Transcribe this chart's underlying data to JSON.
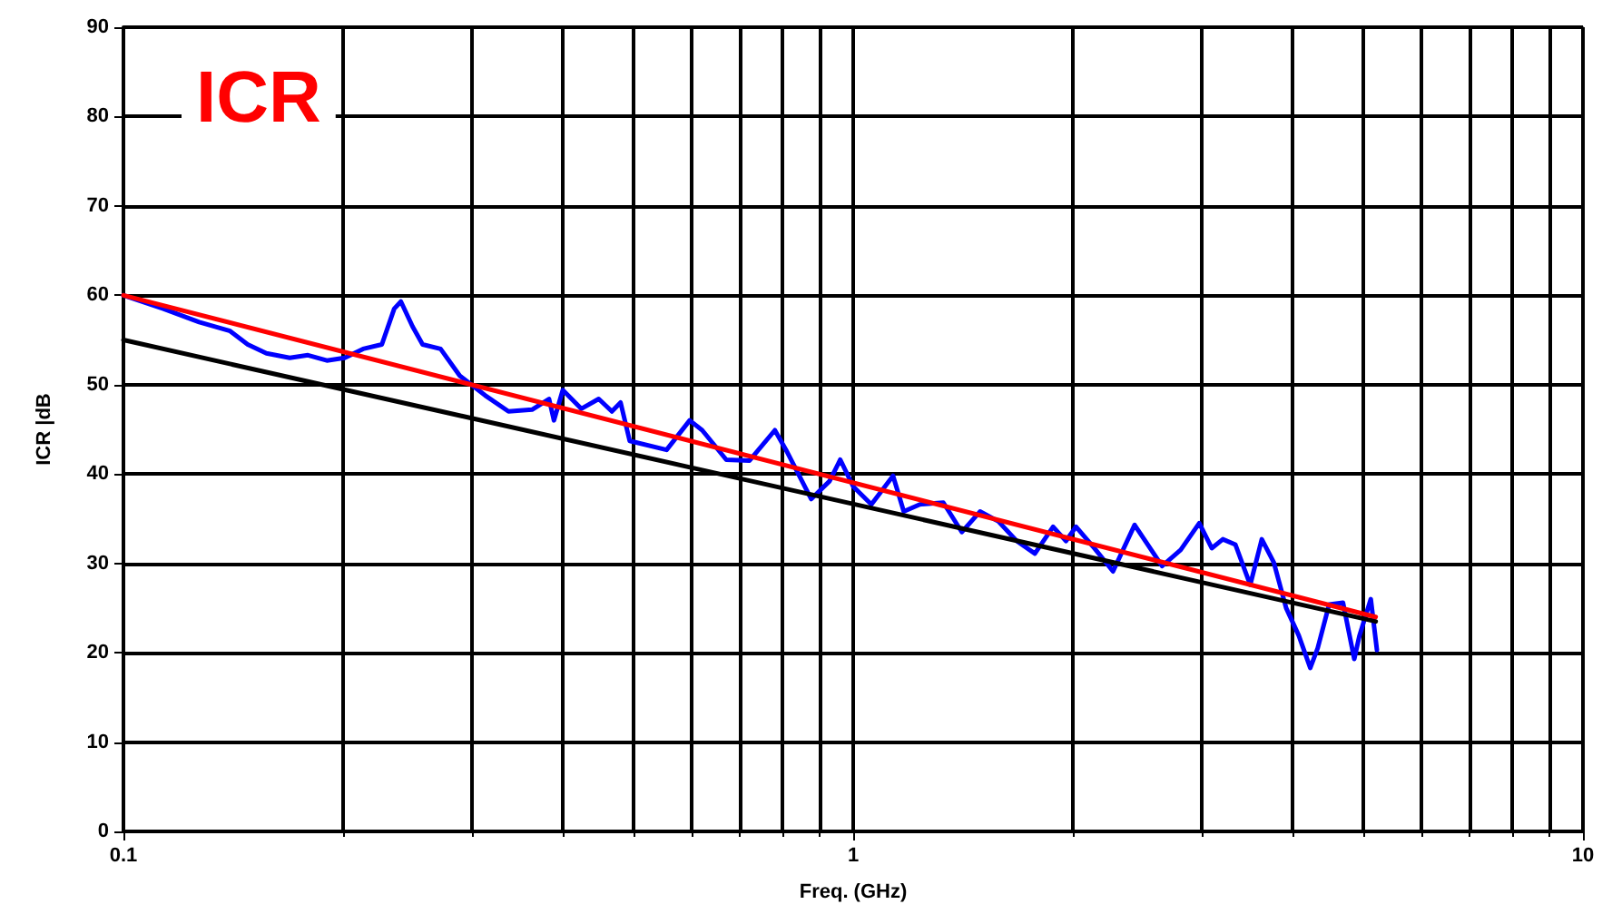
{
  "chart_data": {
    "type": "line",
    "title": "ICR",
    "xlabel": "Freq. (GHz)",
    "ylabel": "ICR |dB",
    "log": "x",
    "xlim": [
      0.1,
      10
    ],
    "xticks": [
      0.1,
      1,
      10
    ],
    "ylim": [
      0,
      90
    ],
    "yticks": [
      0,
      10,
      20,
      30,
      40,
      50,
      60,
      70,
      80,
      90
    ],
    "grid": true,
    "marker": "none",
    "line_style": "solid",
    "series": [
      {
        "color": "#0000ff",
        "x": [
          0.1,
          0.1134,
          0.127,
          0.14,
          0.148,
          0.157,
          0.169,
          0.179,
          0.19,
          0.201,
          0.213,
          0.226,
          0.235,
          0.24,
          0.249,
          0.257,
          0.272,
          0.289,
          0.313,
          0.337,
          0.363,
          0.383,
          0.389,
          0.4,
          0.424,
          0.448,
          0.467,
          0.48,
          0.494,
          0.555,
          0.597,
          0.621,
          0.67,
          0.721,
          0.781,
          0.809,
          0.876,
          0.928,
          0.96,
          1.0,
          1.059,
          1.134,
          1.173,
          1.234,
          1.329,
          1.409,
          1.492,
          1.581,
          1.675,
          1.774,
          1.879,
          1.957,
          2.02,
          2.14,
          2.27,
          2.43,
          2.65,
          2.81,
          2.98,
          3.1,
          3.21,
          3.34,
          3.5,
          3.63,
          3.77,
          3.92,
          4.08,
          4.23,
          4.33,
          4.49,
          4.69,
          4.86,
          4.94,
          5.12,
          5.22
        ],
        "values": [
          60,
          58.5,
          57,
          56,
          54.5,
          53.5,
          53,
          53.3,
          52.7,
          53,
          54,
          54.5,
          58.5,
          59.3,
          56.5,
          54.5,
          54,
          51,
          48.8,
          47,
          47.2,
          48.4,
          46,
          49.4,
          47.3,
          48.4,
          47,
          48,
          43.7,
          42.7,
          46,
          44.9,
          41.6,
          41.5,
          44.9,
          42.7,
          37.2,
          39.2,
          41.6,
          38.6,
          36.6,
          39.8,
          35.8,
          36.6,
          36.8,
          33.5,
          35.8,
          34.7,
          32.5,
          31.1,
          34.1,
          32.5,
          34.1,
          31.7,
          29.1,
          34.3,
          29.7,
          31.5,
          34.5,
          31.7,
          32.7,
          32.1,
          27.6,
          32.7,
          30.1,
          25,
          21.9,
          18.3,
          20.5,
          25.4,
          25.6,
          19.3,
          21.9,
          26,
          20.3
        ]
      },
      {
        "color": "#000000",
        "x": [
          0.1,
          5.2
        ],
        "values": [
          55,
          23.5
        ]
      },
      {
        "color": "#ff0000",
        "x": [
          0.1,
          5.2
        ],
        "values": [
          60,
          24
        ]
      }
    ]
  }
}
